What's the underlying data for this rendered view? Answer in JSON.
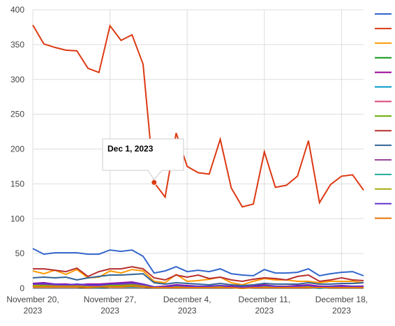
{
  "chart_data": {
    "type": "line",
    "x": [
      "2023-11-20",
      "2023-11-21",
      "2023-11-22",
      "2023-11-23",
      "2023-11-24",
      "2023-11-25",
      "2023-11-26",
      "2023-11-27",
      "2023-11-28",
      "2023-11-29",
      "2023-11-30",
      "2023-12-01",
      "2023-12-02",
      "2023-12-03",
      "2023-12-04",
      "2023-12-05",
      "2023-12-06",
      "2023-12-07",
      "2023-12-08",
      "2023-12-09",
      "2023-12-10",
      "2023-12-11",
      "2023-12-12",
      "2023-12-13",
      "2023-12-14",
      "2023-12-15",
      "2023-12-16",
      "2023-12-17",
      "2023-12-18",
      "2023-12-19",
      "2023-12-20"
    ],
    "xticks": [
      {
        "value": "2023-11-20",
        "label": "November 20, 2023"
      },
      {
        "value": "2023-11-27",
        "label": "November 27, 2023"
      },
      {
        "value": "2023-12-04",
        "label": "December 4, 2023"
      },
      {
        "value": "2023-12-11",
        "label": "December 11, 2023"
      },
      {
        "value": "2023-12-18",
        "label": "December 18, 2023"
      }
    ],
    "ylim": [
      0,
      400
    ],
    "yticks": [
      0,
      50,
      100,
      150,
      200,
      250,
      300,
      350,
      400
    ],
    "grid": true,
    "tooltip": "Dec 1, 2023",
    "series": [
      {
        "color": "#3366cc",
        "values": [
          57,
          49,
          51,
          51,
          51,
          49,
          49,
          55,
          53,
          55,
          46,
          22,
          25,
          31,
          24,
          26,
          24,
          28,
          21,
          19,
          18,
          27,
          22,
          22,
          23,
          28,
          18,
          21,
          23,
          24,
          18
        ]
      },
      {
        "color": "#dc3912",
        "values": [
          378,
          351,
          346,
          342,
          341,
          316,
          310,
          377,
          356,
          364,
          322,
          152,
          131,
          223,
          175,
          166,
          164,
          214,
          144,
          117,
          121,
          196,
          145,
          148,
          161,
          212,
          123,
          149,
          161,
          163,
          141
        ]
      },
      {
        "color": "#ff9900",
        "values": [
          25,
          21,
          26,
          20,
          27,
          15,
          16,
          25,
          22,
          27,
          25,
          10,
          8,
          20,
          10,
          11,
          13,
          16,
          8,
          5,
          10,
          14,
          12,
          12,
          10,
          10,
          8,
          10,
          10,
          10,
          8
        ]
      },
      {
        "color": "#109618",
        "values": [
          3,
          3,
          2,
          3,
          3,
          2,
          2,
          3,
          3,
          4,
          3,
          1,
          1,
          2,
          2,
          1,
          1,
          2,
          1,
          1,
          1,
          2,
          1,
          1,
          1,
          2,
          1,
          1,
          2,
          2,
          1
        ]
      },
      {
        "color": "#990099",
        "values": [
          7,
          8,
          6,
          6,
          5,
          6,
          6,
          7,
          8,
          9,
          6,
          2,
          3,
          5,
          4,
          3,
          3,
          4,
          3,
          2,
          3,
          5,
          3,
          3,
          4,
          5,
          3,
          3,
          4,
          3,
          3
        ]
      },
      {
        "color": "#0099c6",
        "values": [
          2,
          2,
          2,
          2,
          2,
          1,
          1,
          2,
          2,
          2,
          2,
          1,
          1,
          1,
          1,
          1,
          1,
          1,
          1,
          0,
          1,
          1,
          1,
          1,
          1,
          1,
          0,
          1,
          1,
          1,
          1
        ]
      },
      {
        "color": "#dd4477",
        "values": [
          4,
          4,
          3,
          4,
          3,
          3,
          3,
          4,
          4,
          5,
          3,
          1,
          1,
          2,
          2,
          2,
          1,
          2,
          1,
          1,
          1,
          2,
          2,
          2,
          2,
          3,
          1,
          2,
          2,
          2,
          1
        ]
      },
      {
        "color": "#66aa00",
        "values": [
          5,
          5,
          4,
          4,
          4,
          3,
          3,
          5,
          5,
          6,
          5,
          2,
          2,
          3,
          2,
          2,
          2,
          3,
          2,
          1,
          2,
          3,
          2,
          2,
          2,
          3,
          2,
          2,
          3,
          2,
          2
        ]
      },
      {
        "color": "#b82e2e",
        "values": [
          28,
          28,
          26,
          24,
          29,
          17,
          24,
          28,
          28,
          31,
          28,
          15,
          12,
          19,
          16,
          19,
          14,
          16,
          12,
          10,
          13,
          15,
          14,
          12,
          17,
          19,
          10,
          12,
          15,
          12,
          11
        ]
      },
      {
        "color": "#316395",
        "values": [
          15,
          16,
          15,
          16,
          12,
          15,
          17,
          19,
          19,
          20,
          21,
          8,
          6,
          8,
          7,
          6,
          5,
          7,
          5,
          4,
          5,
          7,
          6,
          6,
          6,
          8,
          6,
          6,
          7,
          7,
          8
        ]
      },
      {
        "color": "#994499",
        "values": [
          6,
          6,
          5,
          5,
          5,
          4,
          4,
          6,
          6,
          7,
          5,
          2,
          2,
          4,
          3,
          3,
          2,
          3,
          2,
          2,
          2,
          4,
          3,
          3,
          3,
          4,
          2,
          3,
          3,
          3,
          2
        ]
      },
      {
        "color": "#22aa99",
        "values": [
          3,
          3,
          3,
          3,
          2,
          2,
          2,
          3,
          3,
          3,
          3,
          1,
          1,
          2,
          1,
          1,
          1,
          2,
          1,
          1,
          1,
          2,
          1,
          1,
          1,
          2,
          1,
          1,
          1,
          1,
          1
        ]
      },
      {
        "color": "#aaaa11",
        "values": [
          4,
          3,
          3,
          3,
          3,
          2,
          2,
          3,
          3,
          4,
          3,
          1,
          1,
          2,
          2,
          1,
          1,
          2,
          1,
          1,
          1,
          2,
          1,
          1,
          2,
          2,
          1,
          1,
          2,
          1,
          1
        ]
      },
      {
        "color": "#6633cc",
        "values": [
          6,
          7,
          6,
          5,
          6,
          5,
          5,
          6,
          7,
          8,
          6,
          2,
          2,
          4,
          3,
          3,
          3,
          4,
          2,
          2,
          2,
          4,
          3,
          2,
          3,
          4,
          2,
          3,
          3,
          3,
          2
        ]
      },
      {
        "color": "#e67300",
        "values": [
          2,
          2,
          2,
          2,
          2,
          1,
          2,
          2,
          2,
          3,
          2,
          1,
          1,
          1,
          1,
          1,
          1,
          1,
          1,
          0,
          1,
          1,
          1,
          1,
          1,
          1,
          1,
          1,
          1,
          1,
          1
        ]
      }
    ]
  }
}
